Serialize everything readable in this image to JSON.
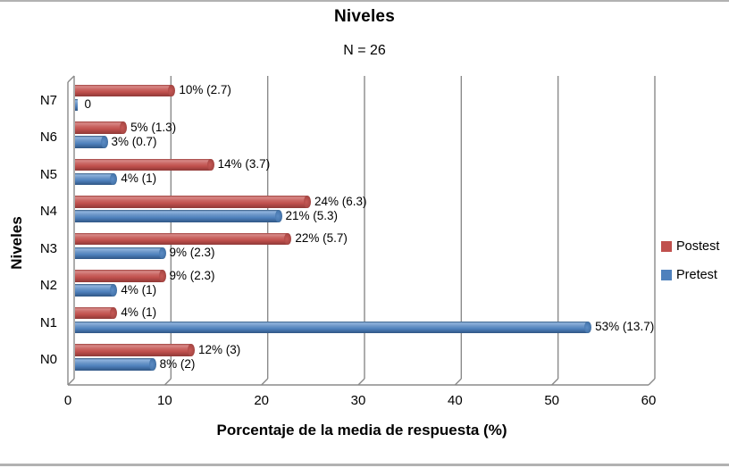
{
  "chart_data": {
    "type": "bar",
    "orientation": "horizontal",
    "style": "3d-cylinder",
    "title": "Niveles",
    "subtitle": "N = 26",
    "xlabel": "Porcentaje de la media de respuesta (%)",
    "ylabel": "Niveles",
    "xlim": [
      0,
      60
    ],
    "xticks": [
      0,
      10,
      20,
      30,
      40,
      50,
      60
    ],
    "grid": true,
    "legend_position": "right",
    "categories": [
      "N7",
      "N6",
      "N5",
      "N4",
      "N3",
      "N2",
      "N1",
      "N0"
    ],
    "series": [
      {
        "name": "Postest",
        "color": "#C0504D",
        "values": [
          10,
          5,
          14,
          24,
          22,
          9,
          4,
          12
        ],
        "labels": [
          "10% (2.7)",
          "5% (1.3)",
          "14% (3.7)",
          "24% (6.3)",
          "22% (5.7)",
          "9% (2.3)",
          "4% (1)",
          "12% (3)"
        ]
      },
      {
        "name": "Pretest",
        "color": "#4F81BD",
        "values": [
          0,
          3,
          4,
          21,
          9,
          4,
          53,
          8
        ],
        "labels": [
          "0",
          "3% (0.7)",
          "4% (1)",
          "21% (5.3)",
          "9% (2.3)",
          "4% (1)",
          "53% (13.7)",
          "8% (2)"
        ]
      }
    ],
    "colors": {
      "gridline": "#8a8a8a",
      "postest": "#C0504D",
      "pretest": "#4F81BD"
    }
  }
}
